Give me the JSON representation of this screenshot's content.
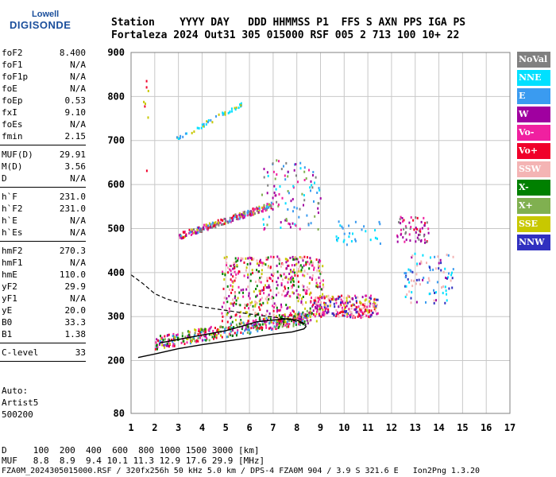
{
  "logo": {
    "line1": "Lowell",
    "line2": "DIGISONDE"
  },
  "header": {
    "line1": "Station    YYYY DAY   DDD HHMMSS P1  FFS S AXN PPS IGA PS",
    "line2": "Fortaleza 2024 Out31 305 015000 RSF 005 2 713 100 10+ 22"
  },
  "params": [
    {
      "group": [
        {
          "label": "foF2",
          "value": "8.400"
        },
        {
          "label": "foF1",
          "value": "N/A"
        },
        {
          "label": "foF1p",
          "value": "N/A"
        },
        {
          "label": "foE",
          "value": "N/A"
        },
        {
          "label": "foEp",
          "value": "0.53"
        },
        {
          "label": "fxI",
          "value": "9.10"
        },
        {
          "label": "foEs",
          "value": "N/A"
        },
        {
          "label": "fmin",
          "value": "2.15"
        }
      ]
    },
    {
      "group": [
        {
          "label": "MUF(D)",
          "value": "29.91"
        },
        {
          "label": "M(D)",
          "value": "3.56"
        },
        {
          "label": "D",
          "value": "N/A"
        }
      ]
    },
    {
      "group": [
        {
          "label": "h`F",
          "value": "231.0"
        },
        {
          "label": "h`F2",
          "value": "231.0"
        },
        {
          "label": "h`E",
          "value": "N/A"
        },
        {
          "label": "h`Es",
          "value": "N/A"
        }
      ]
    },
    {
      "group": [
        {
          "label": "hmF2",
          "value": "270.3"
        },
        {
          "label": "hmF1",
          "value": "N/A"
        },
        {
          "label": "hmE",
          "value": "110.0"
        },
        {
          "label": "yF2",
          "value": "29.9"
        },
        {
          "label": "yF1",
          "value": "N/A"
        },
        {
          "label": "yE",
          "value": "20.0"
        },
        {
          "label": "B0",
          "value": "33.3"
        },
        {
          "label": "B1",
          "value": "1.38"
        }
      ]
    },
    {
      "group": [
        {
          "label": "C-level",
          "value": "33"
        }
      ]
    }
  ],
  "auto": {
    "line1": "Auto:",
    "line2": "Artist5",
    "line3": "500200"
  },
  "legend": [
    {
      "label": "NoVal",
      "color": "#808080"
    },
    {
      "label": "NNE",
      "color": "#00e0ff"
    },
    {
      "label": "E",
      "color": "#3a9bf0"
    },
    {
      "label": "W",
      "color": "#a000a0"
    },
    {
      "label": "Vo-",
      "color": "#f020a0"
    },
    {
      "label": "Vo+",
      "color": "#f0002a"
    },
    {
      "label": "SSW",
      "color": "#f4b4b4"
    },
    {
      "label": "X-",
      "color": "#008000"
    },
    {
      "label": "X+",
      "color": "#80b050"
    },
    {
      "label": "SSE",
      "color": "#c8c800"
    },
    {
      "label": "NNW",
      "color": "#3030c0"
    }
  ],
  "footer": {
    "d_line": "D     100  200  400  600  800 1000 1500 3000 [km]",
    "muf_line": "MUF   8.8  8.9  9.4 10.1 11.3 12.9 17.6 29.9 [MHz]",
    "file_line": "FZA0M_2024305015000.RSF / 320fx256h 50 kHz 5.0 km / DPS-4 FZA0M 904 / 3.9 S 321.6 E   Ion2Png 1.3.20"
  },
  "chart_data": {
    "type": "scatter",
    "xlim": [
      1,
      17
    ],
    "ylim": [
      80,
      900
    ],
    "xticks": [
      1,
      2,
      3,
      4,
      5,
      6,
      7,
      8,
      9,
      10,
      11,
      12,
      13,
      14,
      15,
      16,
      17
    ],
    "yticks": [
      80,
      200,
      300,
      400,
      500,
      600,
      700,
      800,
      900
    ],
    "grid": true,
    "clusters": [
      {
        "name": "F2 trace o",
        "x": [
          2.0,
          8.6
        ],
        "y": [
          228,
          300
        ],
        "colors": [
          "#f0002a",
          "#f020a0",
          "#a000a0",
          "#008000",
          "#80b050",
          "#c8c800",
          "#3a9bf0"
        ],
        "count": 420
      },
      {
        "name": "F2 spread",
        "x": [
          4.8,
          9.1
        ],
        "y": [
          290,
          440
        ],
        "colors": [
          "#f4b4b4",
          "#f0002a",
          "#f020a0",
          "#a000a0",
          "#c8c800",
          "#008000"
        ],
        "count": 520
      },
      {
        "name": "F2 high freq",
        "x": [
          8.7,
          11.4
        ],
        "y": [
          300,
          350
        ],
        "colors": [
          "#f0002a",
          "#f020a0",
          "#a000a0",
          "#c8c800",
          "#3030c0",
          "#f4b4b4"
        ],
        "count": 260
      },
      {
        "name": "2nd hop",
        "x": [
          3.0,
          6.9
        ],
        "y": [
          478,
          560
        ],
        "colors": [
          "#f0002a",
          "#f020a0",
          "#a000a0",
          "#c8c800",
          "#3a9bf0",
          "#808080"
        ],
        "count": 220
      },
      {
        "name": "2nd hop spread",
        "x": [
          6.5,
          9.0
        ],
        "y": [
          500,
          660
        ],
        "colors": [
          "#00e0ff",
          "#3a9bf0",
          "#f020a0",
          "#a000a0",
          "#808080",
          "#80b050"
        ],
        "count": 110
      },
      {
        "name": "3rd hop",
        "x": [
          2.9,
          5.8
        ],
        "y": [
          700,
          790
        ],
        "colors": [
          "#c8c800",
          "#3a9bf0",
          "#00e0ff"
        ],
        "count": 45
      },
      {
        "name": "oblique mid",
        "x": [
          9.6,
          11.5
        ],
        "y": [
          460,
          520
        ],
        "colors": [
          "#00e0ff",
          "#3a9bf0"
        ],
        "count": 30
      },
      {
        "name": "oblique far",
        "x": [
          12.2,
          13.6
        ],
        "y": [
          470,
          530
        ],
        "colors": [
          "#f0002a",
          "#f020a0",
          "#a000a0",
          "#808080"
        ],
        "count": 60
      },
      {
        "name": "oblique far low",
        "x": [
          12.5,
          14.6
        ],
        "y": [
          330,
          450
        ],
        "colors": [
          "#00e0ff",
          "#3a9bf0",
          "#a000a0",
          "#f4b4b4",
          "#3030c0"
        ],
        "count": 90
      },
      {
        "name": "scattered",
        "x": [
          1.5,
          1.7
        ],
        "y": [
          580,
          870
        ],
        "colors": [
          "#c8c800",
          "#a000a0",
          "#00e0ff",
          "#f0002a"
        ],
        "count": 8
      }
    ],
    "profile_dashed": [
      [
        1.0,
        395
      ],
      [
        1.5,
        375
      ],
      [
        2.0,
        352
      ],
      [
        2.5,
        340
      ],
      [
        3.0,
        332
      ],
      [
        4.0,
        322
      ],
      [
        5.0,
        314
      ],
      [
        6.0,
        306
      ],
      [
        7.0,
        299
      ],
      [
        7.8,
        292
      ],
      [
        8.2,
        285
      ],
      [
        8.4,
        278
      ]
    ],
    "profile_solid_lower": [
      [
        1.3,
        207
      ],
      [
        2.0,
        215
      ],
      [
        3.0,
        227
      ],
      [
        4.0,
        236
      ],
      [
        5.0,
        244
      ],
      [
        6.0,
        252
      ],
      [
        7.0,
        260
      ],
      [
        7.8,
        265
      ],
      [
        8.3,
        272
      ],
      [
        8.4,
        278
      ]
    ],
    "profile_solid_upper": [
      [
        2.2,
        240
      ],
      [
        3.0,
        248
      ],
      [
        4.0,
        258
      ],
      [
        5.0,
        268
      ],
      [
        5.8,
        280
      ],
      [
        6.3,
        288
      ],
      [
        7.0,
        292
      ],
      [
        7.6,
        295
      ],
      [
        8.0,
        292
      ],
      [
        8.4,
        282
      ]
    ]
  }
}
